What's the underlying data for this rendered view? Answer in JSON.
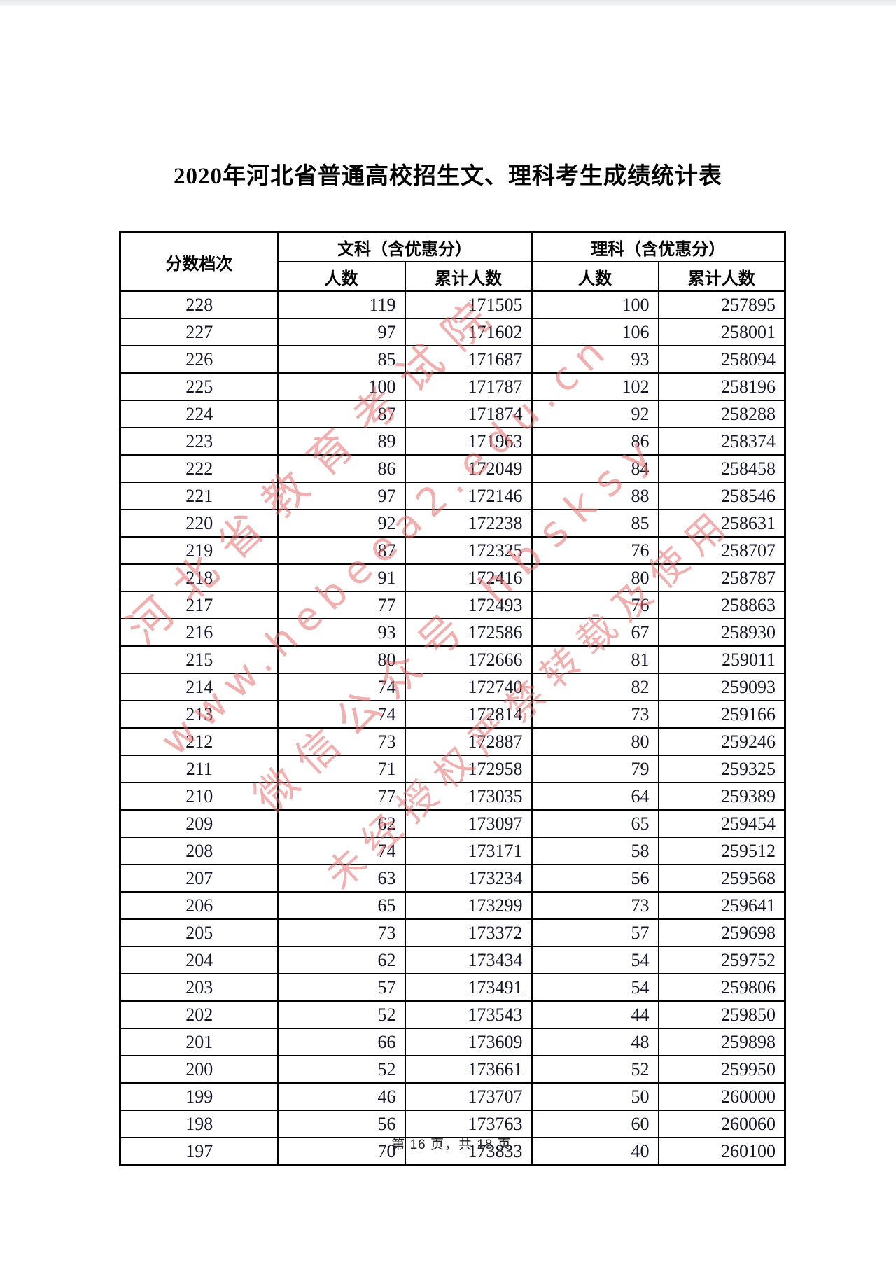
{
  "page": {
    "title": "2020年河北省普通高校招生文、理科考生成绩统计表",
    "footer": "第 16 页，共 18 页"
  },
  "colors": {
    "watermark_pink": "#e47070",
    "table_border": "#000000",
    "number_text": "#15152a"
  },
  "watermark": {
    "lines": [
      "河北省教育考试院",
      "www.hebeea2.edu.cn",
      "微信公众号 hbsksy",
      "未经授权严禁转载及使用"
    ]
  },
  "table": {
    "headers": {
      "score_band": "分数档次",
      "liberal_arts_group": "文科（含优惠分）",
      "science_group": "理科（含优惠分）",
      "count": "人数",
      "cumulative": "累计人数"
    },
    "rows": [
      [
        228,
        119,
        171505,
        100,
        257895
      ],
      [
        227,
        97,
        171602,
        106,
        258001
      ],
      [
        226,
        85,
        171687,
        93,
        258094
      ],
      [
        225,
        100,
        171787,
        102,
        258196
      ],
      [
        224,
        87,
        171874,
        92,
        258288
      ],
      [
        223,
        89,
        171963,
        86,
        258374
      ],
      [
        222,
        86,
        172049,
        84,
        258458
      ],
      [
        221,
        97,
        172146,
        88,
        258546
      ],
      [
        220,
        92,
        172238,
        85,
        258631
      ],
      [
        219,
        87,
        172325,
        76,
        258707
      ],
      [
        218,
        91,
        172416,
        80,
        258787
      ],
      [
        217,
        77,
        172493,
        76,
        258863
      ],
      [
        216,
        93,
        172586,
        67,
        258930
      ],
      [
        215,
        80,
        172666,
        81,
        259011
      ],
      [
        214,
        74,
        172740,
        82,
        259093
      ],
      [
        213,
        74,
        172814,
        73,
        259166
      ],
      [
        212,
        73,
        172887,
        80,
        259246
      ],
      [
        211,
        71,
        172958,
        79,
        259325
      ],
      [
        210,
        77,
        173035,
        64,
        259389
      ],
      [
        209,
        62,
        173097,
        65,
        259454
      ],
      [
        208,
        74,
        173171,
        58,
        259512
      ],
      [
        207,
        63,
        173234,
        56,
        259568
      ],
      [
        206,
        65,
        173299,
        73,
        259641
      ],
      [
        205,
        73,
        173372,
        57,
        259698
      ],
      [
        204,
        62,
        173434,
        54,
        259752
      ],
      [
        203,
        57,
        173491,
        54,
        259806
      ],
      [
        202,
        52,
        173543,
        44,
        259850
      ],
      [
        201,
        66,
        173609,
        48,
        259898
      ],
      [
        200,
        52,
        173661,
        52,
        259950
      ],
      [
        199,
        46,
        173707,
        50,
        260000
      ],
      [
        198,
        56,
        173763,
        60,
        260060
      ],
      [
        197,
        70,
        173833,
        40,
        260100
      ]
    ]
  }
}
